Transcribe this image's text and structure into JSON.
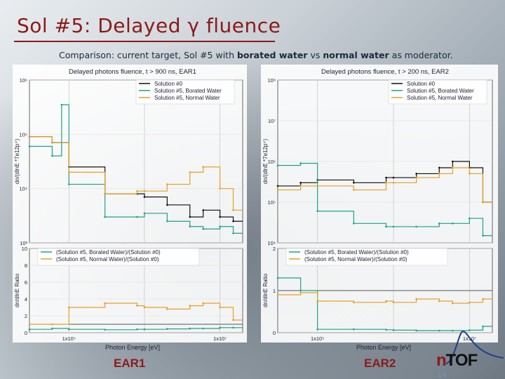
{
  "slide": {
    "title": "Sol #5: Delayed γ fluence",
    "subtitle_parts": [
      "Comparison: current target, Sol #5 with ",
      "borated water",
      " vs ",
      "normal water",
      " as moderator."
    ],
    "page_number": "14",
    "logo_n": "n",
    "logo_text": "TOF",
    "ear1_label": "EAR1",
    "ear2_label": "EAR2"
  },
  "colors": {
    "black": "#111111",
    "borated": "#1aa38a",
    "normal": "#e8a020",
    "ratio_line": "#555555",
    "title": "#8b1a1a"
  },
  "chart_data": [
    {
      "type": "line",
      "title": "Delayed photons fluence, t > 900 ns, EAR1",
      "ylabel": "dn/(dlnE *7e12p⁺)",
      "y_ticks": [
        "10⁶",
        "10⁵",
        "10⁴",
        "10³"
      ],
      "ylog": true,
      "ylim": [
        1000,
        1000000
      ],
      "xlog": true,
      "xlim": [
        30000,
        20000000
      ],
      "series": [
        {
          "name": "Solution #0",
          "color": "black",
          "x": [
            30000,
            60000,
            100000,
            300000,
            800000,
            1000000,
            2000000,
            4000000,
            6000000,
            10000000,
            15000000
          ],
          "y": [
            90000,
            70000,
            25000,
            8000,
            8000,
            7000,
            5000,
            3000,
            4000,
            3000,
            2500
          ]
        },
        {
          "name": "Solution #5, Borated Water",
          "color": "borated",
          "x": [
            30000,
            60000,
            80000,
            100000,
            300000,
            800000,
            1000000,
            2000000,
            4000000,
            6000000,
            10000000,
            15000000
          ],
          "y": [
            60000,
            40000,
            350000,
            12000,
            3000,
            3000,
            3500,
            2500,
            2000,
            1800,
            2000,
            1500
          ]
        },
        {
          "name": "Solution #5, Normal Water",
          "color": "normal",
          "x": [
            30000,
            60000,
            100000,
            300000,
            800000,
            1000000,
            2000000,
            4000000,
            6000000,
            10000000,
            15000000
          ],
          "y": [
            90000,
            70000,
            20000,
            8000,
            9000,
            9000,
            12000,
            20000,
            25000,
            10000,
            4000
          ]
        }
      ]
    },
    {
      "type": "line",
      "title": "Delayed photons fluence, t > 200 ns, EAR2",
      "ylabel": "dn/(dlnE *7e12p⁺)",
      "y_ticks": [
        "10⁸",
        "10⁷",
        "10⁶",
        "10⁵",
        "10⁴"
      ],
      "ylog": true,
      "ylim": [
        10000,
        100000000
      ],
      "xlog": true,
      "xlim": [
        30000,
        20000000
      ],
      "series": [
        {
          "name": "Solution #0",
          "color": "black",
          "x": [
            30000,
            60000,
            100000,
            300000,
            800000,
            1000000,
            2000000,
            4000000,
            6000000,
            10000000,
            15000000
          ],
          "y": [
            250000,
            300000,
            350000,
            300000,
            400000,
            400000,
            500000,
            700000,
            1000000,
            700000,
            100000
          ]
        },
        {
          "name": "Solution #5, Borated Water",
          "color": "borated",
          "x": [
            30000,
            60000,
            100000,
            300000,
            800000,
            1000000,
            2000000,
            4000000,
            6000000,
            10000000,
            15000000
          ],
          "y": [
            800000,
            900000,
            60000,
            30000,
            25000,
            25000,
            25000,
            30000,
            30000,
            40000,
            15000
          ]
        },
        {
          "name": "Solution #5, Normal Water",
          "color": "normal",
          "x": [
            30000,
            60000,
            100000,
            300000,
            800000,
            1000000,
            2000000,
            4000000,
            6000000,
            10000000,
            15000000
          ],
          "y": [
            200000,
            250000,
            250000,
            200000,
            300000,
            300000,
            400000,
            500000,
            700000,
            500000,
            100000
          ]
        }
      ]
    },
    {
      "type": "line",
      "ylabel": "dn/dlnE Ratio",
      "y_ticks": [
        "10",
        "8",
        "6",
        "4",
        "2",
        "0"
      ],
      "x_ticks": [
        "1x10⁵",
        "1x10⁷"
      ],
      "xlabel": "Photon Energy [eV]",
      "ylim": [
        0,
        10
      ],
      "xlog": true,
      "xlim": [
        30000,
        20000000
      ],
      "series": [
        {
          "name": "(Solution #5, Borated Water)/(Solution #0)",
          "color": "borated",
          "x": [
            30000,
            60000,
            100000,
            300000,
            800000,
            1000000,
            2000000,
            4000000,
            6000000,
            10000000,
            15000000
          ],
          "y": [
            0.4,
            0.5,
            0.4,
            0.35,
            0.4,
            0.4,
            0.45,
            0.5,
            0.5,
            0.6,
            0.6
          ]
        },
        {
          "name": "(Solution #5, Normal Water)/(Solution #0)",
          "color": "normal",
          "x": [
            30000,
            60000,
            100000,
            300000,
            800000,
            1000000,
            2000000,
            4000000,
            6000000,
            10000000,
            15000000
          ],
          "y": [
            1.0,
            1.0,
            3.0,
            3.5,
            3.2,
            3.0,
            2.8,
            3.2,
            3.5,
            3.0,
            1.5
          ]
        }
      ]
    },
    {
      "type": "line",
      "ylabel": "dn/dlnE Ratio",
      "y_ticks": [
        "2",
        "1",
        "0"
      ],
      "x_ticks": [
        "1x10⁵",
        "1x10⁷"
      ],
      "xlabel": "Photon Energy [eV]",
      "ylim": [
        0,
        2
      ],
      "xlog": true,
      "xlim": [
        30000,
        20000000
      ],
      "series": [
        {
          "name": "(Solution #5, Borated Water)/(Solution #0)",
          "color": "borated",
          "x": [
            30000,
            60000,
            100000,
            300000,
            800000,
            1000000,
            2000000,
            4000000,
            6000000,
            10000000,
            15000000
          ],
          "y": [
            1.3,
            1.0,
            0.08,
            0.08,
            0.07,
            0.06,
            0.05,
            0.05,
            0.05,
            0.06,
            0.15
          ]
        },
        {
          "name": "(Solution #5, Normal Water)/(Solution #0)",
          "color": "normal",
          "x": [
            30000,
            60000,
            100000,
            300000,
            800000,
            1000000,
            2000000,
            4000000,
            6000000,
            10000000,
            15000000
          ],
          "y": [
            0.9,
            0.95,
            0.75,
            0.72,
            0.75,
            0.72,
            0.8,
            0.75,
            0.7,
            0.72,
            0.8
          ]
        }
      ]
    }
  ]
}
